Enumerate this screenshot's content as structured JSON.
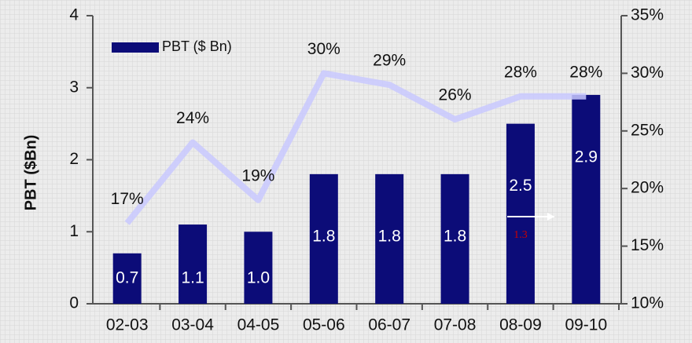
{
  "chart_data": {
    "type": "bar",
    "y_label": "PBT ($Bn)",
    "categories": [
      "02-03",
      "03-04",
      "04-05",
      "05-06",
      "06-07",
      "07-08",
      "08-09",
      "09-10"
    ],
    "series": [
      {
        "name": "PBT ($ Bn)",
        "type": "bar",
        "color": "#0c0c78",
        "values": [
          0.7,
          1.1,
          1.0,
          1.8,
          1.8,
          1.8,
          2.5,
          2.9
        ],
        "value_labels": [
          "0.7",
          "1.1",
          "1.0",
          "1.8",
          "1.8",
          "1.8",
          "2.5",
          "2.9"
        ]
      },
      {
        "type": "line",
        "axis": "y2",
        "color": "#c9c9ff",
        "values": [
          17,
          24,
          19,
          30,
          29,
          26,
          28,
          28
        ],
        "value_labels": [
          "17%",
          "24%",
          "19%",
          "30%",
          "29%",
          "26%",
          "28%",
          "28%"
        ]
      }
    ],
    "annotations": [
      {
        "text": "1.3",
        "color": "#cc0000"
      }
    ],
    "ylim": [
      0,
      4
    ],
    "yticks": [
      0,
      1,
      2,
      3,
      4
    ],
    "y2lim": [
      10,
      35
    ],
    "y2ticks": [
      {
        "value": 10,
        "label": "10%"
      },
      {
        "value": 15,
        "label": "15%"
      },
      {
        "value": 20,
        "label": "20%"
      },
      {
        "value": 25,
        "label": "25%"
      },
      {
        "value": 30,
        "label": "30%"
      },
      {
        "value": 35,
        "label": "35%"
      }
    ],
    "legend": "upper left"
  }
}
